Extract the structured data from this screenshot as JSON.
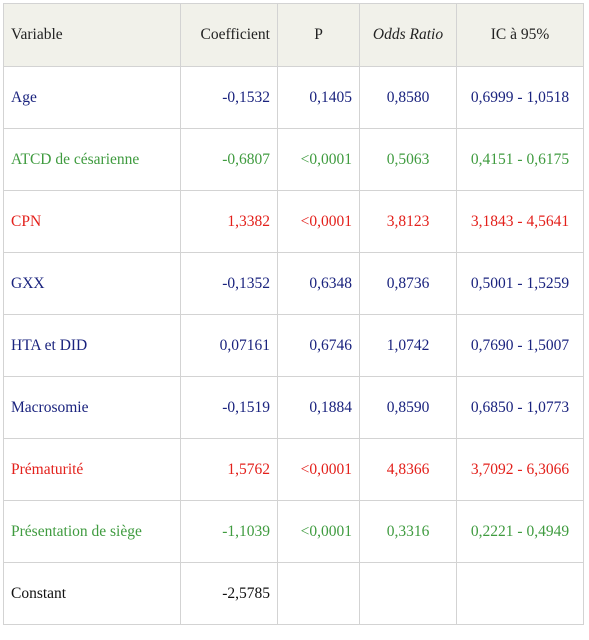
{
  "headers": {
    "variable": "Variable",
    "coefficient": "Coefficient",
    "p": "P",
    "odds_ratio": "Odds Ratio",
    "ci": "IC à 95%"
  },
  "colors": {
    "navy": "#1a237e",
    "green": "#3f9b3f",
    "red": "#e3201b",
    "black": "#111111",
    "header_bg": "#f1f1ea"
  },
  "rows": [
    {
      "variable": "Age",
      "coefficient": "-0,1532",
      "p": "0,1405",
      "odds_ratio": "0,8580",
      "ci": "0,6999 - 1,0518",
      "color": "navy"
    },
    {
      "variable": "ATCD de césarienne",
      "coefficient": "-0,6807",
      "p": "<0,0001",
      "odds_ratio": "0,5063",
      "ci": "0,4151 - 0,6175",
      "color": "green"
    },
    {
      "variable": "CPN",
      "coefficient": "1,3382",
      "p": "<0,0001",
      "odds_ratio": "3,8123",
      "ci": "3,1843 - 4,5641",
      "color": "red"
    },
    {
      "variable": "GXX",
      "coefficient": "-0,1352",
      "p": "0,6348",
      "odds_ratio": "0,8736",
      "ci": "0,5001 - 1,5259",
      "color": "navy"
    },
    {
      "variable": "HTA et DID",
      "coefficient": "0,07161",
      "p": "0,6746",
      "odds_ratio": "1,0742",
      "ci": "0,7690 - 1,5007",
      "color": "navy"
    },
    {
      "variable": "Macrosomie",
      "coefficient": "-0,1519",
      "p": "0,1884",
      "odds_ratio": "0,8590",
      "ci": "0,6850 - 1,0773",
      "color": "navy"
    },
    {
      "variable": "Prématurité",
      "coefficient": "1,5762",
      "p": "<0,0001",
      "odds_ratio": "4,8366",
      "ci": "3,7092 - 6,3066",
      "color": "red"
    },
    {
      "variable": "Présentation de siège",
      "coefficient": "-1,1039",
      "p": "<0,0001",
      "odds_ratio": "0,3316",
      "ci": "0,2221 - 0,4949",
      "color": "green"
    },
    {
      "variable": "Constant",
      "coefficient": "-2,5785",
      "p": "",
      "odds_ratio": "",
      "ci": "",
      "color": "black"
    }
  ]
}
